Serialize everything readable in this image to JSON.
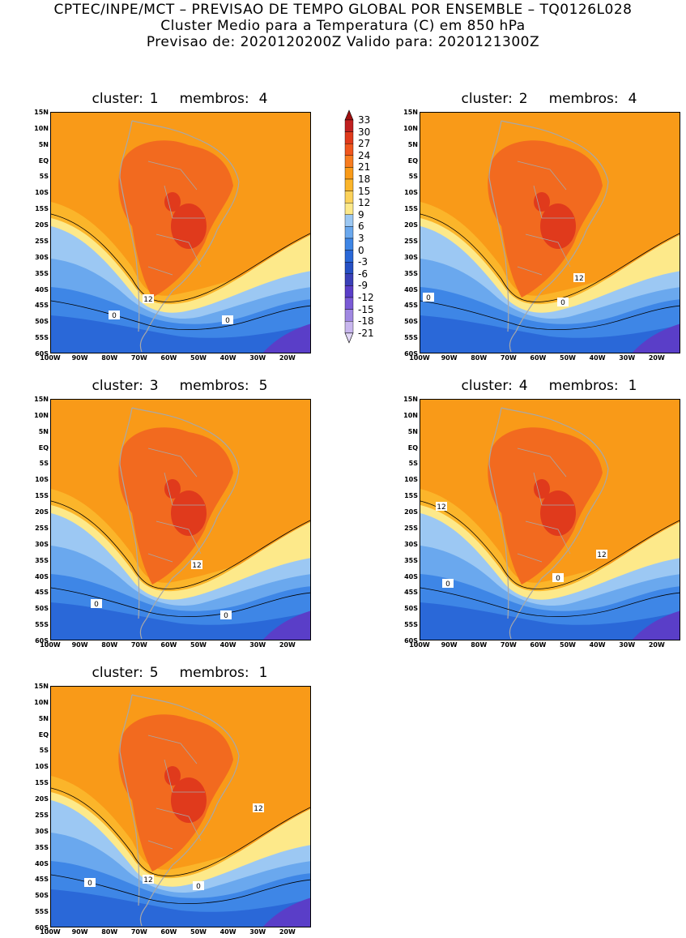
{
  "header": {
    "line1": "CPTEC/INPE/MCT – PREVISAO DE TEMPO GLOBAL POR ENSEMBLE – TQ0126L028",
    "line2": "Cluster Medio para a Temperatura (C) em 850 hPa",
    "line3": "Previsao de: 2020120200Z   Valido para: 2020121300Z"
  },
  "panels": [
    {
      "cluster_label": "cluster:",
      "cluster": "1",
      "members_label": "membros:",
      "members": "4",
      "contour_labels": [
        "12",
        "0",
        "0"
      ]
    },
    {
      "cluster_label": "cluster:",
      "cluster": "2",
      "members_label": "membros:",
      "members": "4",
      "contour_labels": [
        "12",
        "0",
        "0"
      ]
    },
    {
      "cluster_label": "cluster:",
      "cluster": "3",
      "members_label": "membros:",
      "members": "5",
      "contour_labels": [
        "12",
        "0",
        "0"
      ]
    },
    {
      "cluster_label": "cluster:",
      "cluster": "4",
      "members_label": "membros:",
      "members": "1",
      "contour_labels": [
        "12",
        "12",
        "0",
        "0"
      ]
    },
    {
      "cluster_label": "cluster:",
      "cluster": "5",
      "members_label": "membros:",
      "members": "1",
      "contour_labels": [
        "12",
        "12",
        "0",
        "0"
      ]
    }
  ],
  "lat_ticks": [
    "15N",
    "10N",
    "5N",
    "EQ",
    "5S",
    "10S",
    "15S",
    "20S",
    "25S",
    "30S",
    "35S",
    "40S",
    "45S",
    "50S",
    "55S",
    "60S"
  ],
  "lon_ticks": [
    "100W",
    "90W",
    "80W",
    "70W",
    "60W",
    "50W",
    "40W",
    "30W",
    "20W"
  ],
  "colorbar": {
    "labels": [
      "33",
      "30",
      "27",
      "24",
      "21",
      "18",
      "15",
      "12",
      "9",
      "6",
      "3",
      "0",
      "-3",
      "-6",
      "-9",
      "-12",
      "-15",
      "-18",
      "-21"
    ],
    "colors": [
      "#a01010",
      "#c02020",
      "#e03a1c",
      "#f0561e",
      "#f77c1f",
      "#f99a18",
      "#fbb52a",
      "#fcd25a",
      "#fde98a",
      "#9cc8f3",
      "#6aa8ee",
      "#3e86e6",
      "#2a68d8",
      "#2650c4",
      "#3a40b8",
      "#5a3ec8",
      "#7a5ad6",
      "#a088e2",
      "#c8b6ee",
      "#e2d8f6"
    ]
  },
  "palette": {
    "orange_hot": "#f26a1f",
    "orange": "#f99a18",
    "orange_light": "#fbb52a",
    "yellow": "#fde98a",
    "blue_light": "#9cc8f3",
    "blue": "#6aa8ee",
    "blue_mid": "#3e86e6",
    "blue_dark": "#2a68d8",
    "purple": "#5a3ec8",
    "red": "#e03a1c",
    "land_line": "#a8a8a8"
  }
}
